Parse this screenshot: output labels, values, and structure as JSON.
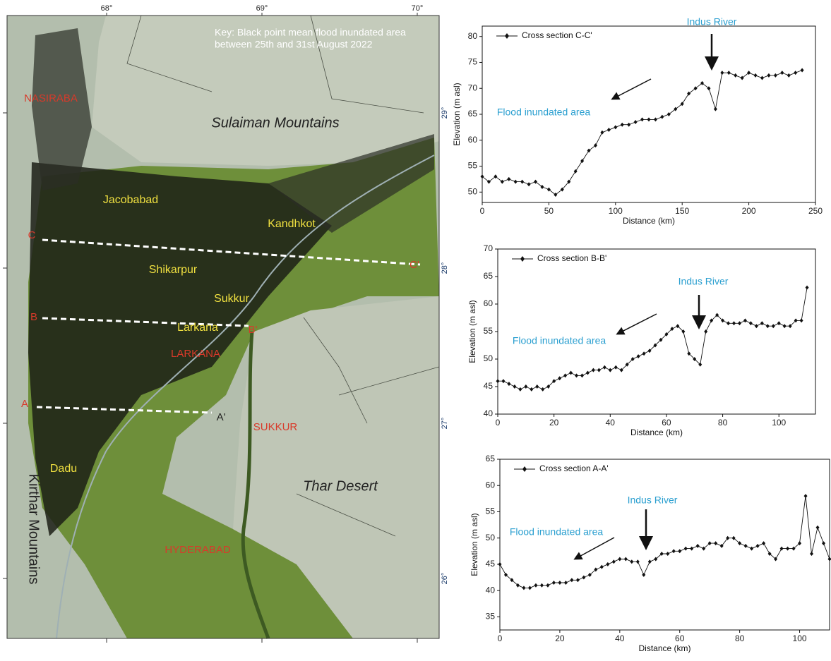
{
  "map": {
    "key": [
      "Key: Black point mean flood inundated area",
      "between 25th and 31st  August 2022"
    ],
    "lon_ticks": [
      "68°",
      "69°",
      "70°"
    ],
    "lat_ticks": [
      "29°",
      "28°",
      "27°",
      "26°"
    ],
    "labels": [
      "NASIRABA",
      "Sulaiman Mountains",
      "Jacobabad",
      "Kandhkot",
      "C",
      "C'",
      "Shikarpur",
      "Sukkur",
      "B",
      "B'",
      "Larkana",
      "LARKANA",
      "A",
      "A'",
      "SUKKUR",
      "Dadu",
      "Thar Desert",
      "Kirthar Mountains",
      "HYDERABAD"
    ]
  },
  "chart_data": [
    {
      "type": "line",
      "x_label": "Distance (km)",
      "y_label": "Elevation (m asl)",
      "annotations": [
        "Indus River",
        "Flood inundated area"
      ],
      "xlim": [
        0,
        250
      ],
      "ylim": [
        48,
        82
      ],
      "xticks": [
        0,
        50,
        100,
        150,
        200,
        250
      ],
      "yticks": [
        50,
        55,
        60,
        65,
        70,
        75,
        80
      ],
      "x": [
        0,
        5,
        10,
        15,
        20,
        25,
        30,
        35,
        40,
        45,
        50,
        55,
        60,
        65,
        70,
        75,
        80,
        85,
        90,
        95,
        100,
        105,
        110,
        115,
        120,
        125,
        130,
        135,
        140,
        145,
        150,
        155,
        160,
        165,
        170,
        175,
        180,
        185,
        190,
        195,
        200,
        205,
        210,
        215,
        220,
        225,
        230,
        235,
        240
      ],
      "series": [
        {
          "name": "Cross section C-C'",
          "color": "#111111",
          "values": [
            53,
            52,
            53,
            52,
            52.5,
            52,
            52,
            51.5,
            52,
            51,
            50.5,
            49.5,
            50.5,
            52,
            54,
            56,
            58,
            59,
            61.5,
            62,
            62.5,
            63,
            63,
            63.5,
            64,
            64,
            64,
            64.5,
            65,
            66,
            67,
            69,
            70,
            71,
            70,
            66,
            73,
            73,
            72.5,
            72,
            73,
            72.5,
            72,
            72.5,
            72.5,
            73,
            72.5,
            73,
            73.5
          ]
        }
      ]
    },
    {
      "type": "line",
      "x_label": "Distance (km)",
      "y_label": "Elevation (m asl)",
      "annotations": [
        "Indus River",
        "Flood inundated area"
      ],
      "xlim": [
        0,
        113
      ],
      "ylim": [
        40,
        70
      ],
      "xticks": [
        0,
        20,
        40,
        60,
        80,
        100
      ],
      "yticks": [
        40,
        45,
        50,
        55,
        60,
        65,
        70
      ],
      "x": [
        0,
        2,
        4,
        6,
        8,
        10,
        12,
        14,
        16,
        18,
        20,
        22,
        24,
        26,
        28,
        30,
        32,
        34,
        36,
        38,
        40,
        42,
        44,
        46,
        48,
        50,
        52,
        54,
        56,
        58,
        60,
        62,
        64,
        66,
        68,
        70,
        72,
        74,
        76,
        78,
        80,
        82,
        84,
        86,
        88,
        90,
        92,
        94,
        96,
        98,
        100,
        102,
        104,
        106,
        108,
        110
      ],
      "series": [
        {
          "name": "Cross section B-B'",
          "color": "#111111",
          "values": [
            46,
            46,
            45.5,
            45,
            44.5,
            45,
            44.5,
            45,
            44.5,
            45,
            46,
            46.5,
            47,
            47.5,
            47,
            47,
            47.5,
            48,
            48,
            48.5,
            48,
            48.5,
            48,
            49,
            50,
            50.5,
            51,
            51.5,
            52.5,
            53.5,
            54.5,
            55.5,
            56,
            55,
            51,
            50,
            49,
            55,
            57,
            58,
            57,
            56.5,
            56.5,
            56.5,
            57,
            56.5,
            56,
            56.5,
            56,
            56,
            56.5,
            56,
            56,
            57,
            57,
            63
          ]
        }
      ]
    },
    {
      "type": "line",
      "x_label": "Distance (km)",
      "y_label": "Elevation (m asl)",
      "annotations": [
        "Indus River",
        "Flood inundated area"
      ],
      "xlim": [
        0,
        110
      ],
      "ylim": [
        32.5,
        65
      ],
      "xticks": [
        0,
        20,
        40,
        60,
        80,
        100
      ],
      "yticks": [
        35,
        40,
        45,
        50,
        55,
        60,
        65
      ],
      "x": [
        0,
        2,
        4,
        6,
        8,
        10,
        12,
        14,
        16,
        18,
        20,
        22,
        24,
        26,
        28,
        30,
        32,
        34,
        36,
        38,
        40,
        42,
        44,
        46,
        48,
        50,
        52,
        54,
        56,
        58,
        60,
        62,
        64,
        66,
        68,
        70,
        72,
        74,
        76,
        78,
        80,
        82,
        84,
        86,
        88,
        90,
        92,
        94,
        96,
        98,
        100,
        102,
        104,
        106,
        108,
        110
      ],
      "series": [
        {
          "name": "Cross section A-A'",
          "color": "#111111",
          "values": [
            45,
            43,
            42,
            41,
            40.5,
            40.5,
            41,
            41,
            41,
            41.5,
            41.5,
            41.5,
            42,
            42,
            42.5,
            43,
            44,
            44.5,
            45,
            45.5,
            46,
            46,
            45.5,
            45.5,
            43,
            45.5,
            46,
            47,
            47,
            47.5,
            47.5,
            48,
            48,
            48.5,
            48,
            49,
            49,
            48.5,
            50,
            50,
            49,
            48.5,
            48,
            48.5,
            49,
            47,
            46,
            48,
            48,
            48,
            49,
            58,
            47,
            52,
            49,
            46
          ]
        }
      ]
    }
  ]
}
